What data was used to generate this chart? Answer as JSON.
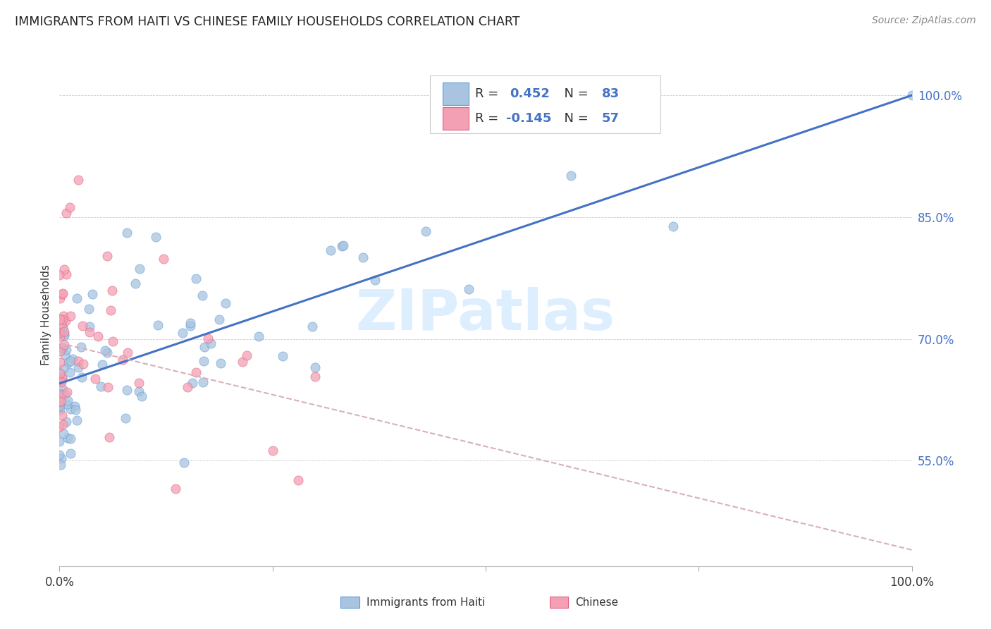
{
  "title": "IMMIGRANTS FROM HAITI VS CHINESE FAMILY HOUSEHOLDS CORRELATION CHART",
  "source": "Source: ZipAtlas.com",
  "ylabel": "Family Households",
  "color_haiti": "#a8c4e0",
  "color_haiti_edge": "#5b9bd5",
  "color_chinese": "#f4a0b4",
  "color_chinese_edge": "#e06080",
  "color_blue_line": "#4472c4",
  "color_pink_line": "#e896a8",
  "color_dashed": "#d8b0bc",
  "watermark_color": "#ddeeff",
  "background_color": "#ffffff",
  "grid_color": "#cccccc",
  "tick_color": "#4472c4",
  "legend_label1": "Immigrants from Haiti",
  "legend_label2": "Chinese",
  "yticks": [
    0.55,
    0.7,
    0.85,
    1.0
  ],
  "ytick_labels": [
    "55.0%",
    "70.0%",
    "85.0%",
    "100.0%"
  ],
  "ylim_min": 0.42,
  "ylim_max": 1.04,
  "xlim_min": 0.0,
  "xlim_max": 1.0,
  "haiti_regression_x0": 0.0,
  "haiti_regression_y0": 0.645,
  "haiti_regression_x1": 1.0,
  "haiti_regression_y1": 1.0,
  "chinese_regression_x0": 0.0,
  "chinese_regression_y0": 0.695,
  "chinese_regression_x1": 1.0,
  "chinese_regression_y1": 0.44
}
